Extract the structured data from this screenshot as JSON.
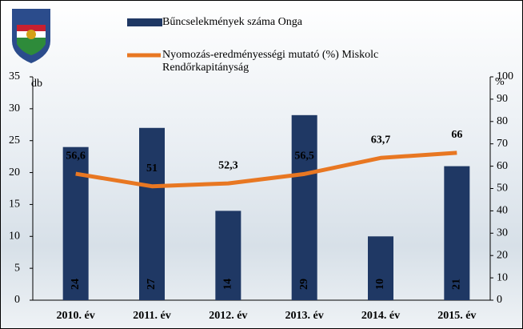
{
  "chart_data": {
    "type": "bar",
    "categories": [
      "2010. év",
      "2011. év",
      "2012. év",
      "2013. év",
      "2014. év",
      "2015. év"
    ],
    "series": [
      {
        "name": "Bűncselekmények száma Onga",
        "type": "bar",
        "color": "#1f3864",
        "values": [
          24,
          27,
          14,
          29,
          10,
          21
        ]
      },
      {
        "name": "Nyomozás-eredményességi mutató (%) Miskolc Rendőrkapitányság",
        "type": "line",
        "axis": "y2",
        "color": "#e87722",
        "values": [
          56.6,
          51,
          52.3,
          56.5,
          63.7,
          66
        ],
        "value_labels": [
          "56,6",
          "51",
          "52,3",
          "56,5",
          "63,7",
          "66"
        ]
      }
    ],
    "ylabel": "db",
    "y2label": "%",
    "ylim": [
      0,
      35
    ],
    "yticks": [
      0,
      5,
      10,
      15,
      20,
      25,
      30,
      35
    ],
    "y2lim": [
      0,
      100
    ],
    "y2ticks": [
      0,
      10,
      20,
      30,
      40,
      50,
      60,
      70,
      80,
      90,
      100
    ]
  }
}
